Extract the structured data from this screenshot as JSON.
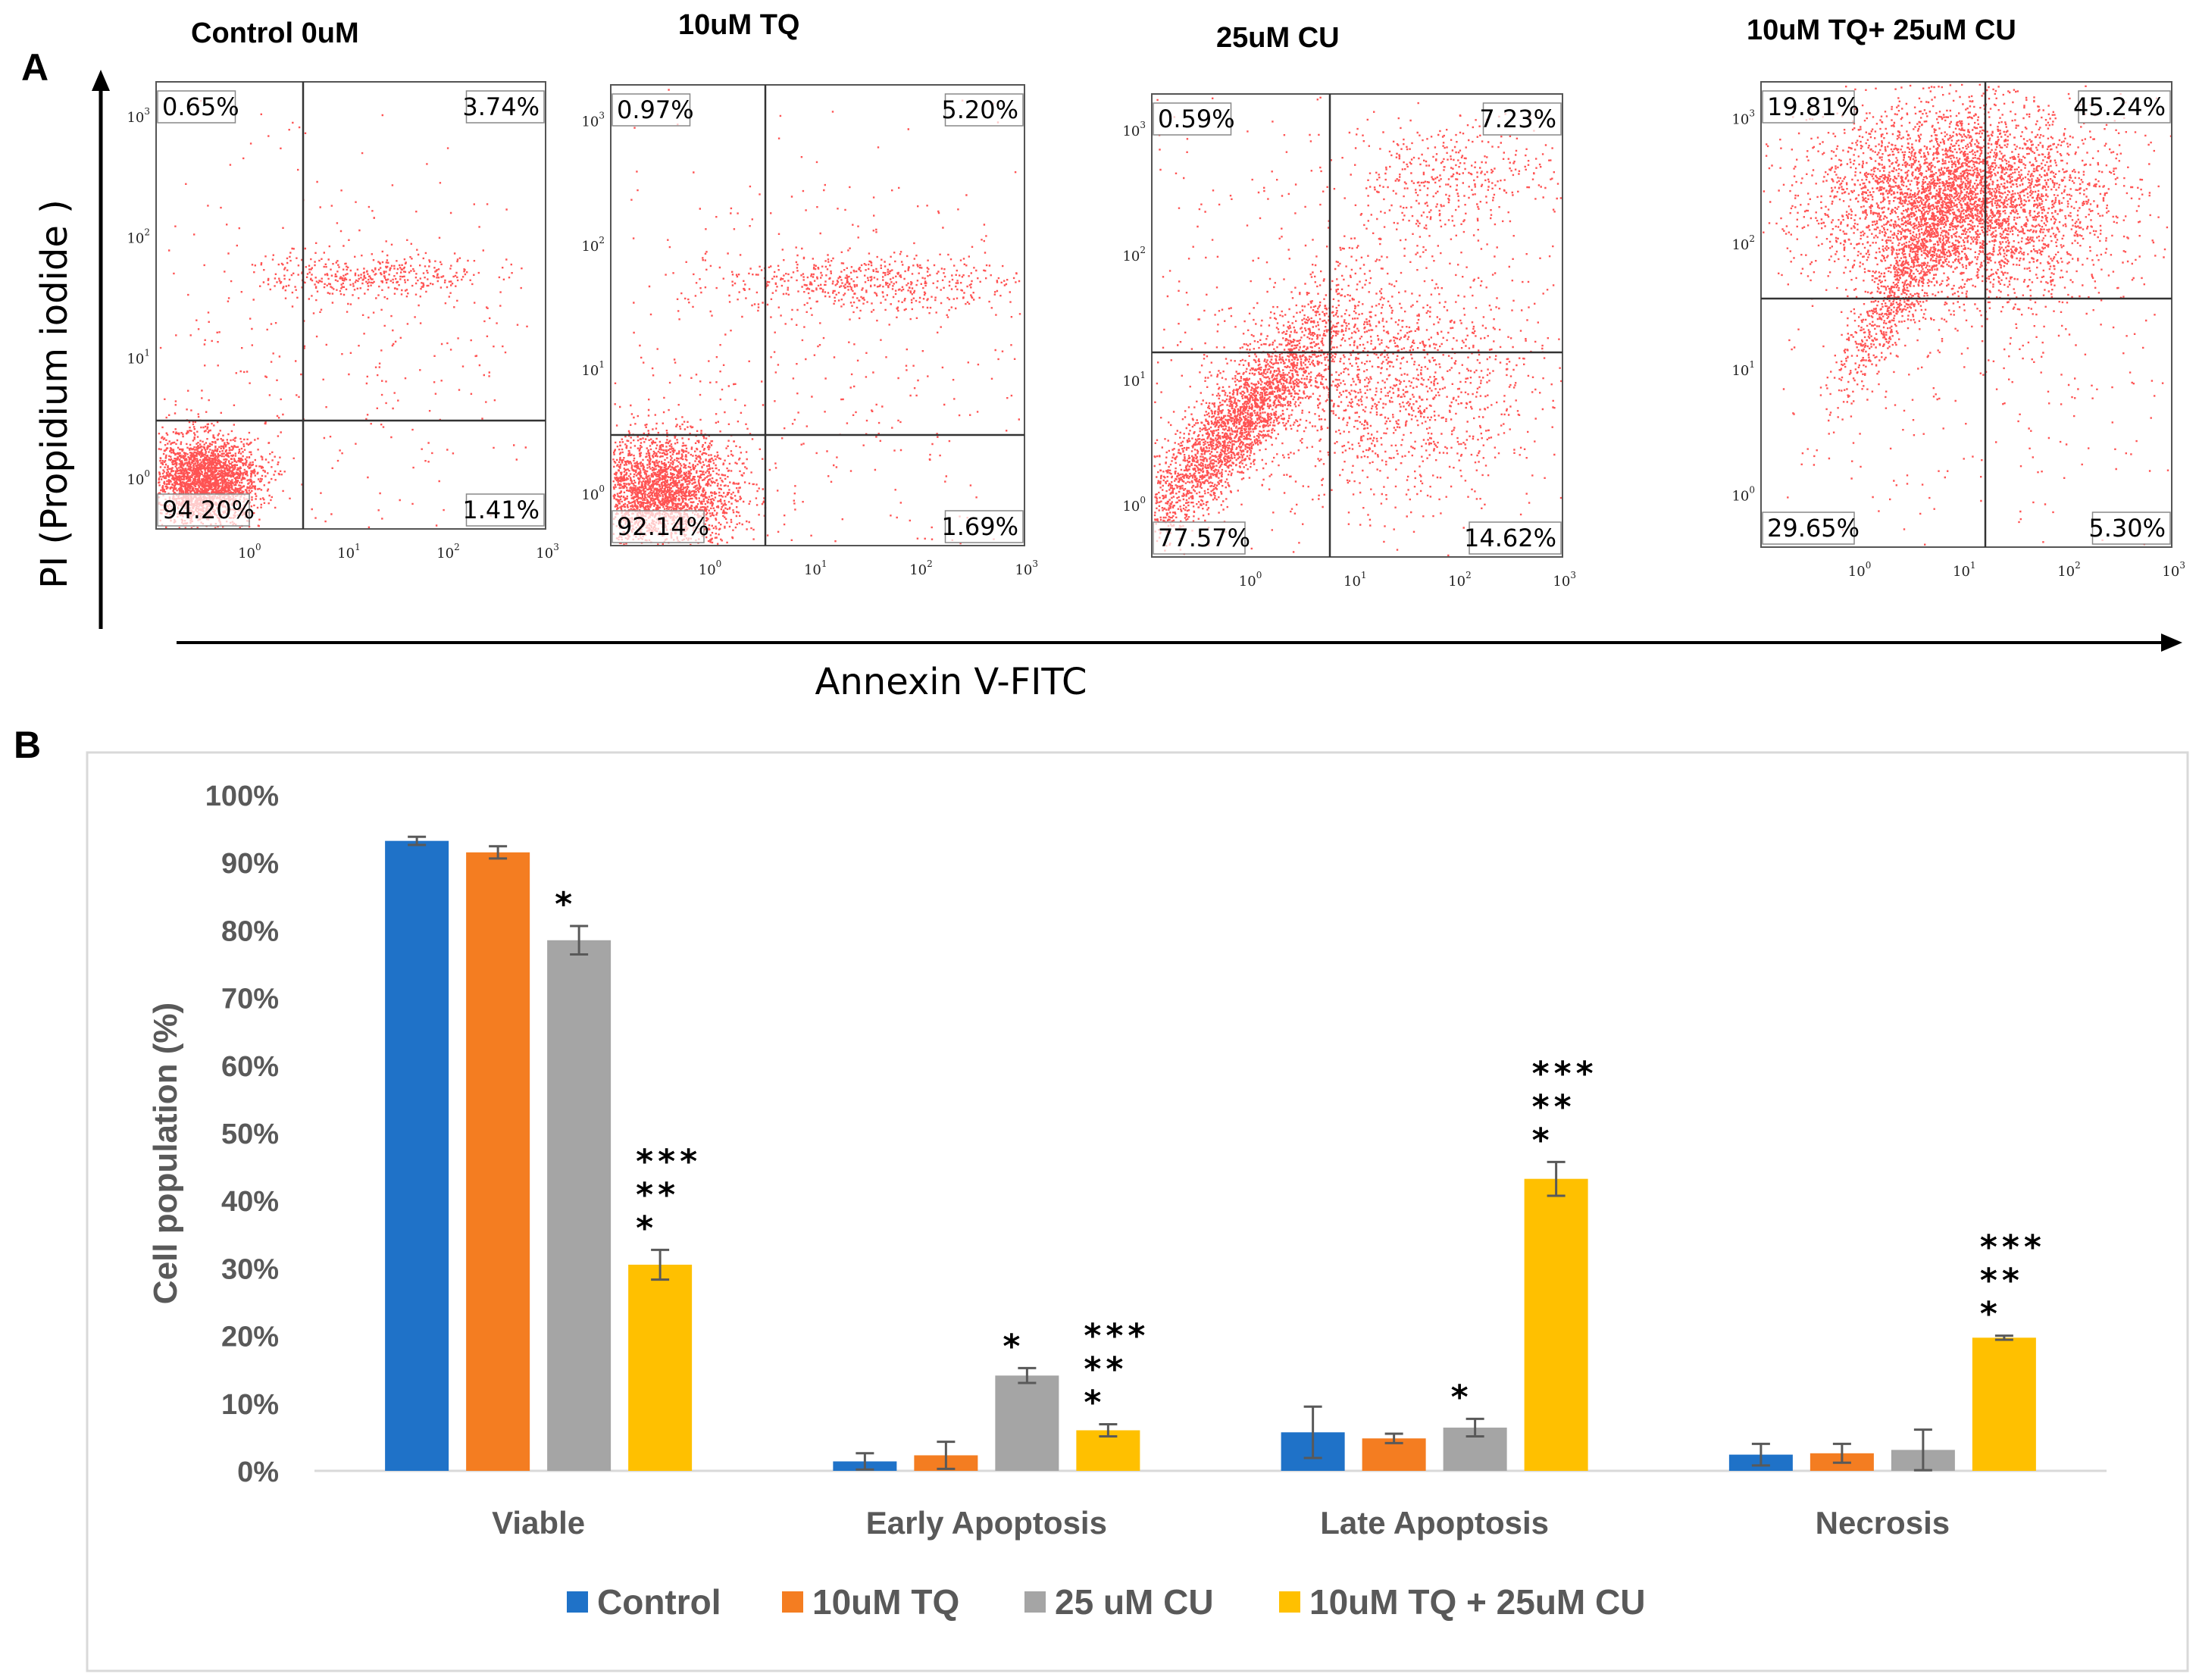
{
  "panel_a": {
    "label": "A",
    "y_axis_title": "PI (Propidium iodide )",
    "x_axis_title": "Annexin V-FITC",
    "tick_labels": [
      "10",
      "10",
      "10",
      "10"
    ],
    "tick_exponents": [
      "0",
      "1",
      "2",
      "3"
    ],
    "colors": {
      "dots": "#ff1a1a",
      "gate": "#333333"
    },
    "plots": [
      {
        "title": "Control 0uM",
        "upper_left": "0.65%",
        "upper_right": "3.74%",
        "lower_left": "94.20%",
        "lower_right": "1.41%"
      },
      {
        "title": "10uM TQ",
        "upper_left": "0.97%",
        "upper_right": "5.20%",
        "lower_left": "92.14%",
        "lower_right": "1.69%"
      },
      {
        "title": "25uM CU",
        "upper_left": "0.59%",
        "upper_right": "7.23%",
        "lower_left": "77.57%",
        "lower_right": "14.62%"
      },
      {
        "title": "10uM TQ+ 25uM CU",
        "upper_left": "19.81%",
        "upper_right": "45.24%",
        "lower_left": "29.65%",
        "lower_right": "5.30%"
      }
    ]
  },
  "panel_b": {
    "label": "B"
  },
  "chart_data": {
    "type": "bar",
    "title": "",
    "xlabel": "",
    "ylabel": "Cell population (%)",
    "ylim": [
      0,
      100
    ],
    "yticks": [
      "0%",
      "10%",
      "20%",
      "30%",
      "40%",
      "50%",
      "60%",
      "70%",
      "80%",
      "90%",
      "100%"
    ],
    "categories": [
      "Viable",
      "Early Apoptosis",
      "Late Apoptosis",
      "Necrosis"
    ],
    "series": [
      {
        "name": "Control",
        "color": "#1f72c8",
        "values": [
          93.2,
          1.4,
          5.7,
          2.4
        ],
        "errors": [
          0.6,
          1.2,
          3.8,
          1.6
        ]
      },
      {
        "name": "10uM TQ",
        "color": "#f47d21",
        "values": [
          91.5,
          2.3,
          4.8,
          2.6
        ],
        "errors": [
          0.9,
          2.0,
          0.7,
          1.4
        ]
      },
      {
        "name": "25 uM CU",
        "color": "#a5a5a5",
        "values": [
          78.5,
          14.1,
          6.4,
          3.1
        ],
        "errors": [
          2.1,
          1.1,
          1.3,
          3.0
        ]
      },
      {
        "name": "10uM TQ + 25uM CU",
        "color": "#ffc000",
        "values": [
          30.5,
          6.0,
          43.2,
          19.7
        ],
        "errors": [
          2.2,
          0.9,
          2.5,
          0.3
        ]
      }
    ],
    "significance": [
      {
        "category": 0,
        "series": 2,
        "lines": [
          "*"
        ]
      },
      {
        "category": 0,
        "series": 3,
        "lines": [
          "***",
          "**",
          "*"
        ]
      },
      {
        "category": 1,
        "series": 2,
        "lines": [
          "*"
        ]
      },
      {
        "category": 1,
        "series": 3,
        "lines": [
          "***",
          "**",
          "*"
        ]
      },
      {
        "category": 2,
        "series": 2,
        "lines": [
          "*"
        ]
      },
      {
        "category": 2,
        "series": 3,
        "lines": [
          "***",
          "**",
          "*"
        ]
      },
      {
        "category": 3,
        "series": 3,
        "lines": [
          "***",
          "**",
          "*"
        ]
      }
    ],
    "legend_position": "bottom"
  }
}
